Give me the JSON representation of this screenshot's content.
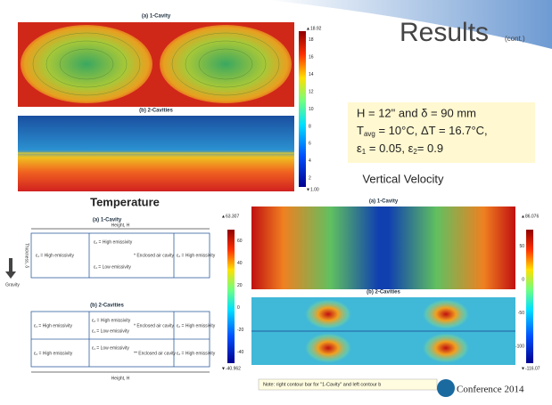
{
  "header": {
    "title": "Results",
    "subtitle": "(cont.)"
  },
  "temperature": {
    "heading": "Temperature",
    "panel_a": "(a) 1-Cavity",
    "panel_b": "(b) 2-Cavities",
    "colorbar": {
      "max": "▲18.92",
      "min": "▼1.00",
      "ticks": [
        "18",
        "16",
        "14",
        "12",
        "10",
        "8",
        "6",
        "4",
        "2"
      ]
    }
  },
  "parameters": {
    "line1": "H = 12\" and δ = 90 mm",
    "line2": {
      "a": "T",
      "sub": "avg",
      "b": " = 10°C, ΔT = 16.7°C,"
    },
    "line3": {
      "a": "ε",
      "sub1": "1",
      "b": " = 0.05, ε",
      "sub2": "2",
      "c": "= 0.9"
    }
  },
  "velocity": {
    "heading": "Vertical Velocity",
    "panel_a": "(a) 1-Cavity",
    "panel_b": "(b) 2-Cavities",
    "left_colorbar": {
      "max": "▲63.307",
      "min": "▼-40.962",
      "ticks": [
        "60",
        "40",
        "20",
        "0",
        "-20",
        "-40"
      ]
    },
    "right_colorbar": {
      "max": "▲86.076",
      "min": "▼-116.07",
      "ticks": [
        "50",
        "0",
        "-50",
        "-100"
      ]
    },
    "note": "Note: right contour bar for \"1-Cavity\" and left contour b"
  },
  "schematic": {
    "panel_a": "(a) 1-Cavity",
    "panel_b": "(b) 2-Cavities",
    "height": "Height, H",
    "thickness": "Thickness, δ",
    "e1_high": "ε₁ = High emissivity",
    "e2_high": "ε₂ = High emissivity",
    "e1_low": "ε₁ = Low emissivity",
    "enclosed_1": "* Enclosed air cavity",
    "enclosed_2": "** Enclosed air cavity",
    "gravity": "Gravity"
  },
  "footer": {
    "logo": "Conference 2014"
  }
}
